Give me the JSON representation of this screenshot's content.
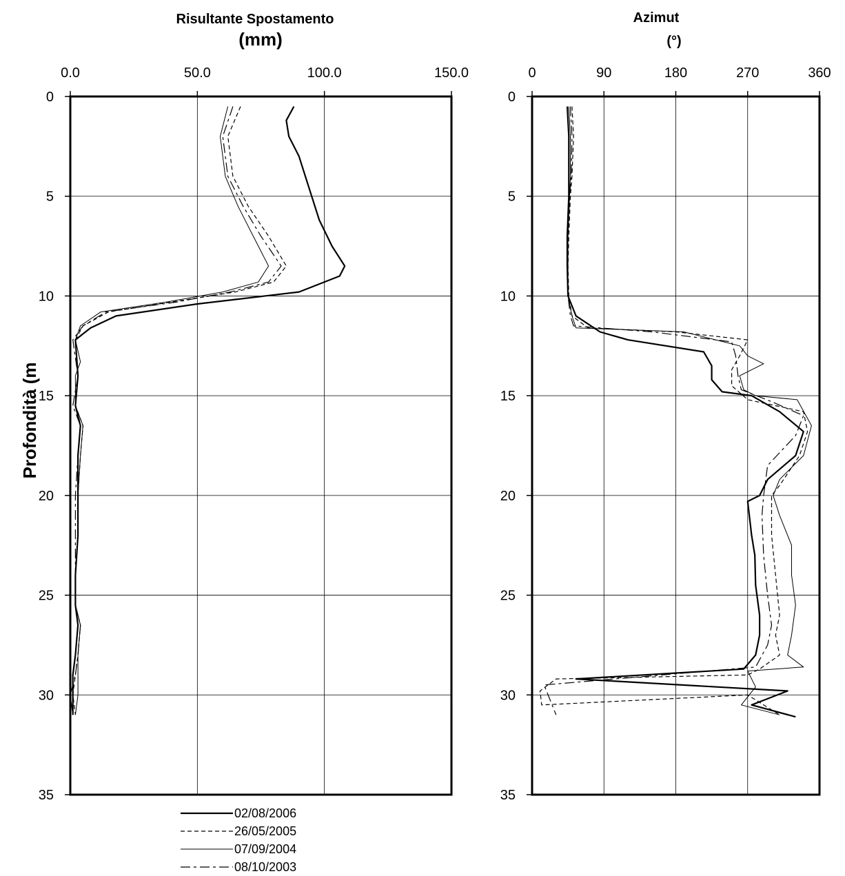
{
  "chart_data": [
    {
      "type": "line",
      "title": "Risultante Spostamento",
      "subtitle": "(mm)",
      "xlabel": "",
      "ylabel": "Profondità (m",
      "xlim": [
        0,
        150
      ],
      "ylim": [
        0,
        35
      ],
      "y_inverted": true,
      "x_axis_position": "top",
      "x_ticks": [
        "0.0",
        "50.0",
        "100.0",
        "150.0"
      ],
      "x_tick_values": [
        0,
        50,
        100,
        150
      ],
      "y_ticks": [
        "0",
        "5",
        "10",
        "15",
        "20",
        "25",
        "30",
        "35"
      ],
      "y_tick_values": [
        0,
        5,
        10,
        15,
        20,
        25,
        30,
        35
      ],
      "grid": true,
      "series": [
        {
          "name": "02/08/2006",
          "style": "solid-thick",
          "points": [
            [
              88,
              0.5
            ],
            [
              85,
              1.2
            ],
            [
              86,
              2
            ],
            [
              90,
              3
            ],
            [
              95,
              5
            ],
            [
              98,
              6.2
            ],
            [
              103,
              7.5
            ],
            [
              108,
              8.5
            ],
            [
              106,
              9
            ],
            [
              90,
              9.8
            ],
            [
              50,
              10.4
            ],
            [
              18,
              11
            ],
            [
              8,
              11.6
            ],
            [
              2,
              12.2
            ],
            [
              3,
              14
            ],
            [
              2,
              15.5
            ],
            [
              4,
              16.5
            ],
            [
              3,
              18
            ],
            [
              3,
              20
            ],
            [
              3,
              22
            ],
            [
              2,
              24
            ],
            [
              2,
              25.5
            ],
            [
              3,
              26.5
            ],
            [
              2,
              28
            ],
            [
              1,
              29
            ],
            [
              1,
              30
            ],
            [
              1,
              31
            ]
          ]
        },
        {
          "name": "26/05/2005",
          "style": "dashed",
          "points": [
            [
              67,
              0.5
            ],
            [
              62,
              2
            ],
            [
              64,
              4
            ],
            [
              70,
              5.5
            ],
            [
              78,
              7
            ],
            [
              85,
              8.5
            ],
            [
              80,
              9.3
            ],
            [
              65,
              9.8
            ],
            [
              40,
              10.3
            ],
            [
              15,
              10.8
            ],
            [
              5,
              11.5
            ],
            [
              2,
              12.2
            ],
            [
              3,
              14
            ],
            [
              2,
              15.5
            ],
            [
              5,
              16.5
            ],
            [
              4,
              18
            ],
            [
              3,
              20
            ],
            [
              3,
              22
            ],
            [
              2,
              24
            ],
            [
              2,
              25.5
            ],
            [
              4,
              26.5
            ],
            [
              3,
              28
            ],
            [
              2,
              29
            ],
            [
              1,
              30
            ],
            [
              2,
              31
            ]
          ]
        },
        {
          "name": "07/09/2004",
          "style": "solid-thin",
          "points": [
            [
              62,
              0.5
            ],
            [
              59,
              2
            ],
            [
              61,
              4
            ],
            [
              66,
              5.5
            ],
            [
              72,
              7
            ],
            [
              78,
              8.5
            ],
            [
              74,
              9.3
            ],
            [
              60,
              9.8
            ],
            [
              38,
              10.3
            ],
            [
              12,
              10.8
            ],
            [
              4,
              11.5
            ],
            [
              2,
              12.2
            ],
            [
              4,
              13.3
            ],
            [
              2,
              14
            ],
            [
              2,
              15.5
            ],
            [
              5,
              16.5
            ],
            [
              4,
              18
            ],
            [
              3,
              20
            ],
            [
              3,
              22
            ],
            [
              2,
              24
            ],
            [
              2,
              25.5
            ],
            [
              4,
              26.5
            ],
            [
              3,
              28
            ],
            [
              3,
              29
            ],
            [
              3,
              30
            ],
            [
              2,
              31
            ]
          ]
        },
        {
          "name": "08/10/2003",
          "style": "dash-long",
          "points": [
            [
              64,
              0.5
            ],
            [
              60,
              2
            ],
            [
              62,
              4
            ],
            [
              68,
              5.5
            ],
            [
              75,
              7
            ],
            [
              83,
              8.5
            ],
            [
              78,
              9.3
            ],
            [
              63,
              9.8
            ],
            [
              42,
              10.3
            ],
            [
              14,
              10.8
            ],
            [
              5,
              11.5
            ],
            [
              1,
              12.2
            ],
            [
              3,
              14
            ],
            [
              1,
              15.5
            ],
            [
              4,
              16.5
            ],
            [
              3,
              18
            ],
            [
              2,
              20
            ],
            [
              2,
              22
            ],
            [
              2,
              24
            ],
            [
              2,
              25.5
            ],
            [
              4,
              26.5
            ],
            [
              3,
              28
            ],
            [
              2,
              29
            ],
            [
              0,
              30
            ],
            [
              1,
              31
            ]
          ]
        }
      ]
    },
    {
      "type": "line",
      "title": "Azimut",
      "subtitle": "(°)",
      "xlabel": "",
      "ylabel": "",
      "xlim": [
        0,
        360
      ],
      "ylim": [
        0,
        35
      ],
      "y_inverted": true,
      "x_axis_position": "top",
      "x_ticks": [
        "0",
        "90",
        "180",
        "270",
        "360"
      ],
      "x_tick_values": [
        0,
        90,
        180,
        270,
        360
      ],
      "y_ticks": [
        "0",
        "5",
        "10",
        "15",
        "20",
        "25",
        "30",
        "35"
      ],
      "y_tick_values": [
        0,
        5,
        10,
        15,
        20,
        25,
        30,
        35
      ],
      "grid": true,
      "series": [
        {
          "name": "02/08/2006",
          "style": "solid-thick",
          "points": [
            [
              44,
              0.5
            ],
            [
              46,
              2
            ],
            [
              46,
              4
            ],
            [
              46,
              5
            ],
            [
              44,
              7
            ],
            [
              44,
              8.5
            ],
            [
              45,
              10
            ],
            [
              55,
              11
            ],
            [
              85,
              11.8
            ],
            [
              120,
              12.2
            ],
            [
              215,
              12.8
            ],
            [
              225,
              13.5
            ],
            [
              225,
              14.2
            ],
            [
              238,
              14.8
            ],
            [
              275,
              15
            ],
            [
              310,
              15.8
            ],
            [
              340,
              16.8
            ],
            [
              330,
              18
            ],
            [
              295,
              19.2
            ],
            [
              285,
              20
            ],
            [
              270,
              20.3
            ],
            [
              275,
              22
            ],
            [
              279,
              23
            ],
            [
              280,
              24.5
            ],
            [
              285,
              26
            ],
            [
              285,
              27
            ],
            [
              280,
              28
            ],
            [
              265,
              28.7
            ],
            [
              55,
              29.2
            ],
            [
              320,
              29.8
            ],
            [
              275,
              30.5
            ],
            [
              330,
              31.1
            ]
          ]
        },
        {
          "name": "26/05/2005",
          "style": "dashed",
          "points": [
            [
              50,
              0.5
            ],
            [
              52,
              2
            ],
            [
              50,
              4
            ],
            [
              48,
              5
            ],
            [
              46,
              7
            ],
            [
              45,
              8.5
            ],
            [
              46,
              10
            ],
            [
              50,
              11
            ],
            [
              70,
              11.6
            ],
            [
              180,
              11.8
            ],
            [
              270,
              12.2
            ],
            [
              260,
              13
            ],
            [
              250,
              13.7
            ],
            [
              250,
              14.5
            ],
            [
              270,
              15.2
            ],
            [
              340,
              15.8
            ],
            [
              345,
              16.8
            ],
            [
              335,
              18
            ],
            [
              310,
              19.5
            ],
            [
              300,
              20
            ],
            [
              300,
              22
            ],
            [
              305,
              24
            ],
            [
              310,
              26
            ],
            [
              305,
              27
            ],
            [
              310,
              28
            ],
            [
              285,
              28.7
            ],
            [
              270,
              29
            ],
            [
              30,
              29.2
            ],
            [
              10,
              29.8
            ],
            [
              12,
              30.5
            ],
            [
              270,
              30
            ],
            [
              310,
              31
            ]
          ]
        },
        {
          "name": "07/09/2004",
          "style": "solid-thin",
          "points": [
            [
              46,
              0.5
            ],
            [
              48,
              2
            ],
            [
              48,
              4
            ],
            [
              47,
              5
            ],
            [
              45,
              7
            ],
            [
              45,
              8.5
            ],
            [
              45,
              10
            ],
            [
              50,
              11
            ],
            [
              55,
              11.6
            ],
            [
              190,
              11.8
            ],
            [
              240,
              12.3
            ],
            [
              260,
              12.5
            ],
            [
              270,
              13
            ],
            [
              290,
              13.4
            ],
            [
              260,
              14
            ],
            [
              265,
              14.7
            ],
            [
              280,
              15
            ],
            [
              332,
              15.2
            ],
            [
              350,
              16.5
            ],
            [
              340,
              18
            ],
            [
              310,
              19.2
            ],
            [
              302,
              20
            ],
            [
              310,
              21
            ],
            [
              325,
              22.5
            ],
            [
              325,
              24
            ],
            [
              330,
              25.5
            ],
            [
              325,
              27
            ],
            [
              320,
              28
            ],
            [
              340,
              28.6
            ],
            [
              270,
              28.8
            ],
            [
              280,
              29.6
            ],
            [
              262,
              30.5
            ],
            [
              310,
              31
            ]
          ]
        },
        {
          "name": "08/10/2003",
          "style": "dash-long",
          "points": [
            [
              48,
              0.5
            ],
            [
              50,
              2
            ],
            [
              49,
              4
            ],
            [
              47,
              5
            ],
            [
              45,
              7
            ],
            [
              44,
              8.5
            ],
            [
              45,
              10
            ],
            [
              48,
              11
            ],
            [
              52,
              11.5
            ],
            [
              150,
              11.8
            ],
            [
              250,
              12.3
            ],
            [
              255,
              13
            ],
            [
              258,
              14
            ],
            [
              262,
              14.7
            ],
            [
              300,
              15.3
            ],
            [
              340,
              16
            ],
            [
              330,
              17
            ],
            [
              295,
              18.5
            ],
            [
              290,
              20
            ],
            [
              288,
              21
            ],
            [
              290,
              23
            ],
            [
              295,
              25
            ],
            [
              300,
              26.5
            ],
            [
              295,
              27.5
            ],
            [
              280,
              28.6
            ],
            [
              15,
              29.5
            ],
            [
              30,
              31
            ]
          ]
        }
      ]
    }
  ],
  "legend": {
    "entries": [
      "02/08/2006",
      "26/05/2005",
      "07/09/2004",
      "08/10/2003"
    ]
  }
}
